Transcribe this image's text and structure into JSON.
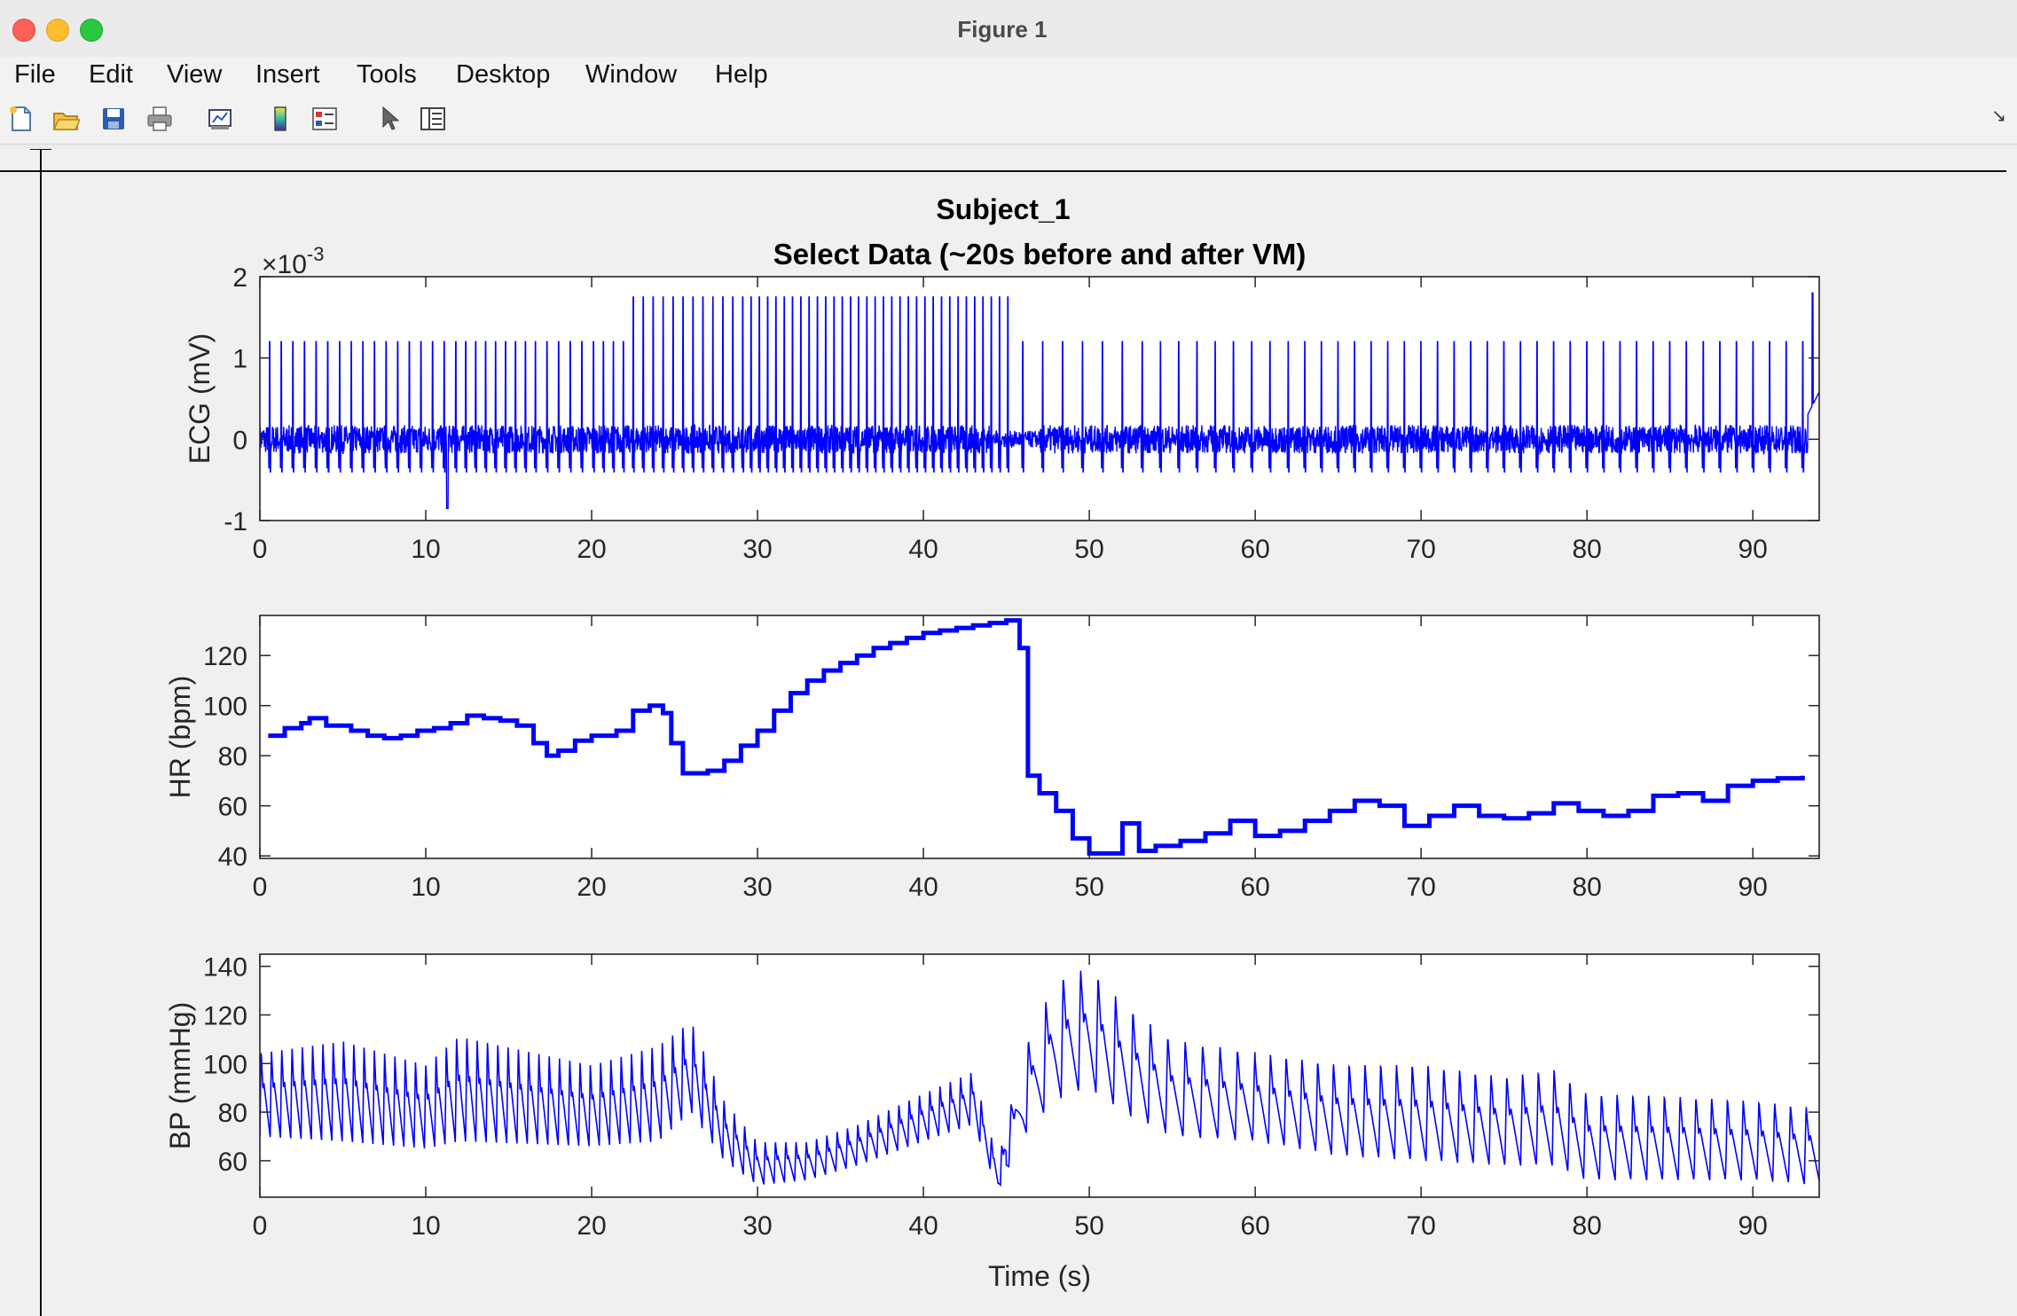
{
  "window": {
    "title": "Figure 1"
  },
  "menu": [
    "File",
    "Edit",
    "View",
    "Insert",
    "Tools",
    "Desktop",
    "Window",
    "Help"
  ],
  "toolbar_icons": [
    "new-figure-icon",
    "open-file-icon",
    "save-icon",
    "print-icon",
    "link-plot-icon",
    "colorbar-icon",
    "legend-icon",
    "pointer-icon",
    "property-editor-icon"
  ],
  "figure": {
    "suptitle": "Subject_1"
  },
  "colors": {
    "line": "#0000ff"
  },
  "chart_data": [
    {
      "type": "line",
      "title": "Select Data (~20s before and after VM)",
      "ylabel": "ECG (mV)",
      "xlabel": "",
      "exponent_label": "×10",
      "exponent_power": "-3",
      "xlim": [
        0,
        94
      ],
      "ylim": [
        -1,
        2
      ],
      "xticks": [
        0,
        10,
        20,
        30,
        40,
        50,
        60,
        70,
        80,
        90
      ],
      "yticks": [
        -1,
        0,
        1,
        2
      ],
      "series": [
        {
          "beat_times": [
            0.6,
            1.3,
            2.0,
            2.7,
            3.4,
            4.1,
            4.8,
            5.5,
            6.2,
            6.9,
            7.6,
            8.3,
            9.0,
            9.7,
            10.4,
            11.1,
            11.8,
            12.4,
            13.0,
            13.6,
            14.2,
            14.8,
            15.4,
            16.0,
            16.6,
            17.3,
            18.0,
            18.7,
            19.4,
            20.1,
            20.7,
            21.3,
            21.9,
            22.5,
            23.1,
            23.7,
            24.3,
            24.9,
            25.5,
            26.1,
            26.7,
            27.3,
            27.9,
            28.5,
            29.1,
            29.6,
            30.1,
            30.6,
            31.1,
            31.6,
            32.1,
            32.6,
            33.1,
            33.6,
            34.1,
            34.6,
            35.1,
            35.6,
            36.1,
            36.6,
            37.1,
            37.6,
            38.1,
            38.6,
            39.1,
            39.6,
            40.1,
            40.6,
            41.1,
            41.6,
            42.1,
            42.6,
            43.1,
            43.6,
            44.1,
            44.6,
            45.1,
            46.0,
            47.2,
            48.4,
            49.6,
            50.8,
            52.0,
            53.2,
            54.3,
            55.4,
            56.5,
            57.6,
            58.7,
            59.8,
            60.9,
            62.0,
            63.0,
            64.0,
            65.0,
            66.0,
            67.0,
            68.0,
            69.0,
            70.0,
            71.0,
            72.0,
            73.0,
            74.0,
            75.0,
            76.0,
            77.0,
            78.0,
            79.0,
            80.0,
            81.0,
            82.0,
            83.0,
            84.0,
            85.0,
            86.0,
            87.0,
            88.0,
            89.0,
            90.0,
            91.0,
            92.0,
            93.0
          ],
          "r_peak_amplitude_mv_x1e-3": "approx 1.1–1.85",
          "baseline_mv_x1e-3": 0
        }
      ]
    },
    {
      "type": "line",
      "title": "",
      "ylabel": "HR (bpm)",
      "xlabel": "",
      "xlim": [
        0,
        94
      ],
      "ylim": [
        39,
        136
      ],
      "xticks": [
        0,
        10,
        20,
        30,
        40,
        50,
        60,
        70,
        80,
        90
      ],
      "yticks": [
        40,
        60,
        80,
        100,
        120
      ],
      "series": [
        {
          "x": [
            0.5,
            1.5,
            2.5,
            3.0,
            4.0,
            5.5,
            6.5,
            7.5,
            8.5,
            9.5,
            10.5,
            11.5,
            12.5,
            13.5,
            14.5,
            15.5,
            16.5,
            17.3,
            18.0,
            19.0,
            20.0,
            21.5,
            22.5,
            23.5,
            24.3,
            24.8,
            25.5,
            27.0,
            28.0,
            29.0,
            30.0,
            31.0,
            32.0,
            33.0,
            34.0,
            35.0,
            36.0,
            37.0,
            38.0,
            39.0,
            40.0,
            41.0,
            42.0,
            43.0,
            44.0,
            45.0,
            45.8,
            46.3,
            47.0,
            48.0,
            49.0,
            50.0,
            51.0,
            52.0,
            53.0,
            54.0,
            55.5,
            57.0,
            58.5,
            60.0,
            61.5,
            63.0,
            64.5,
            66.0,
            67.5,
            69.0,
            70.5,
            72.0,
            73.5,
            75.0,
            76.5,
            78.0,
            79.5,
            81.0,
            82.5,
            84.0,
            85.5,
            87.0,
            88.5,
            90.0,
            91.5,
            93.0
          ],
          "y": [
            88,
            91,
            93,
            95,
            92,
            90,
            88,
            87,
            88,
            90,
            91,
            93,
            96,
            95,
            94,
            92,
            85,
            80,
            82,
            86,
            88,
            90,
            98,
            100,
            97,
            85,
            73,
            74,
            78,
            84,
            90,
            98,
            105,
            110,
            114,
            117,
            120,
            123,
            125,
            127,
            129,
            130,
            131,
            132,
            133,
            134,
            123,
            72,
            65,
            58,
            47,
            41,
            41,
            53,
            42,
            44,
            46,
            49,
            54,
            48,
            50,
            54,
            58,
            62,
            60,
            52,
            56,
            60,
            56,
            55,
            57,
            61,
            58,
            56,
            58,
            64,
            65,
            62,
            68,
            70,
            71,
            72
          ]
        }
      ]
    },
    {
      "type": "line",
      "title": "",
      "ylabel": "BP (mmHg)",
      "xlabel": "Time (s)",
      "xlim": [
        0,
        94
      ],
      "ylim": [
        45,
        145
      ],
      "xticks": [
        0,
        10,
        20,
        30,
        40,
        50,
        60,
        70,
        80,
        90
      ],
      "yticks": [
        60,
        80,
        100,
        120,
        140
      ],
      "series": [
        {
          "envelope_x": [
            0,
            5,
            10,
            12,
            20,
            24,
            26,
            28,
            30,
            33,
            36,
            40,
            43,
            44.5,
            46,
            48,
            50,
            52,
            55,
            60,
            65,
            70,
            75,
            78,
            80,
            85,
            90,
            94
          ],
          "systolic": [
            105,
            110,
            100,
            112,
            100,
            108,
            118,
            85,
            68,
            68,
            75,
            88,
            97,
            60,
            105,
            135,
            140,
            125,
            110,
            105,
            100,
            100,
            95,
            98,
            88,
            87,
            85,
            82
          ],
          "diastolic": [
            70,
            68,
            65,
            68,
            66,
            68,
            80,
            60,
            50,
            52,
            58,
            68,
            75,
            48,
            70,
            85,
            90,
            80,
            70,
            68,
            62,
            60,
            58,
            58,
            52,
            52,
            52,
            50
          ]
        }
      ]
    }
  ]
}
